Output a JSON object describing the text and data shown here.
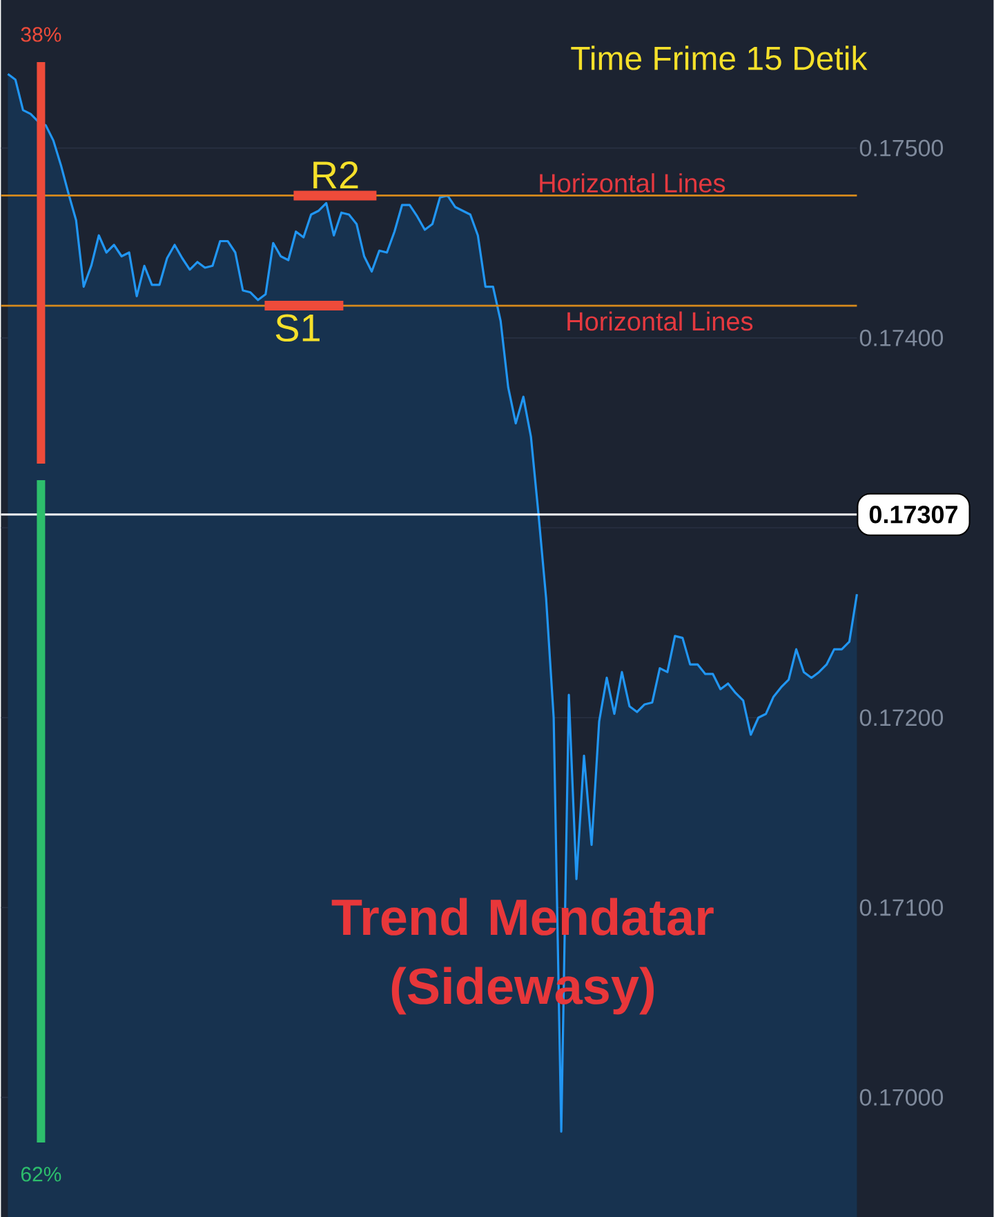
{
  "chart_data": {
    "type": "area",
    "title": "Time Frime 15 Detik",
    "categories": [
      null,
      null,
      null,
      null,
      null,
      null,
      null,
      null,
      null,
      null,
      null,
      null,
      null,
      null,
      null,
      null,
      null,
      null,
      null,
      null,
      null,
      null,
      null,
      null,
      null,
      null,
      null,
      null,
      null,
      null,
      null,
      null,
      null,
      null,
      null,
      null,
      null,
      null,
      null,
      null,
      null,
      null,
      null,
      null,
      null,
      null,
      null,
      null,
      null,
      null,
      null,
      null,
      null,
      null,
      null,
      null,
      null,
      null,
      null,
      null,
      null,
      null,
      null,
      null,
      null,
      null,
      null,
      null,
      null,
      null,
      null,
      null,
      null,
      null,
      null,
      null,
      null,
      null,
      null,
      null,
      null,
      null,
      null,
      null,
      null,
      null,
      null,
      null,
      null,
      null,
      null,
      null,
      null,
      null,
      null,
      null,
      null,
      null,
      null,
      null,
      null,
      null,
      null,
      null,
      null,
      null,
      null,
      null,
      null,
      null,
      null,
      null,
      null
    ],
    "series": [
      {
        "color": "#2196f3",
        "values": [
          0.17539,
          0.17536,
          0.1752,
          0.17518,
          0.17514,
          0.17512,
          0.17504,
          0.17491,
          0.17476,
          0.17462,
          0.17427,
          0.17438,
          0.17454,
          0.17445,
          0.17449,
          0.17443,
          0.17445,
          0.17422,
          0.17438,
          0.17428,
          0.17428,
          0.17442,
          0.17449,
          0.17442,
          0.17436,
          0.1744,
          0.17437,
          0.17438,
          0.17451,
          0.17451,
          0.17445,
          0.17425,
          0.17424,
          0.1742,
          0.17423,
          0.1745,
          0.17443,
          0.17441,
          0.17456,
          0.17453,
          0.17465,
          0.17467,
          0.17471,
          0.17454,
          0.17466,
          0.17465,
          0.1746,
          0.17443,
          0.17435,
          0.17446,
          0.17445,
          0.17456,
          0.1747,
          0.1747,
          0.17464,
          0.17457,
          0.1746,
          0.17474,
          0.17475,
          0.17469,
          0.17467,
          0.17465,
          0.17454,
          0.17427,
          0.17427,
          0.17409,
          0.17374,
          0.17355,
          0.17369,
          0.17348,
          0.17307,
          0.17263,
          0.172,
          0.16982,
          0.17212,
          0.17115,
          0.1718,
          0.17133,
          0.17198,
          0.17221,
          0.17202,
          0.17224,
          0.17206,
          0.17203,
          0.17207,
          0.17208,
          0.17226,
          0.17224,
          0.17243,
          0.17242,
          0.17228,
          0.17228,
          0.17223,
          0.17223,
          0.17215,
          0.17218,
          0.17213,
          0.17209,
          0.17191,
          0.172,
          0.17202,
          0.17211,
          0.17216,
          0.1722,
          0.17236,
          0.17224,
          0.17221,
          0.17224,
          0.17228,
          0.17236,
          0.17236,
          0.1724,
          0.17265
        ]
      }
    ],
    "ylim": [
      0.16937,
      0.17578
    ],
    "yticks": [
      {
        "value": 0.17,
        "label": "0.17000"
      },
      {
        "value": 0.171,
        "label": "0.17100"
      },
      {
        "value": 0.172,
        "label": "0.17200"
      },
      {
        "value": 0.173,
        "label": null
      },
      {
        "value": 0.174,
        "label": "0.17400"
      },
      {
        "value": 0.175,
        "label": "0.17500"
      }
    ],
    "grid": "y",
    "tick_labels": "y",
    "marker": "none",
    "ref_lines": [
      {
        "axis": "y",
        "value": 0.17475,
        "label": "Horizontal Lines",
        "color": "#d68a1c"
      },
      {
        "axis": "y",
        "value": 0.17417,
        "label": "Horizontal Lines",
        "color": "#d68a1c"
      },
      {
        "axis": "y",
        "value": 0.17307,
        "label": "0.17307",
        "color": "#ffffff"
      }
    ],
    "annotations": [
      {
        "text": "R2",
        "y": 0.17475
      },
      {
        "text": "S1",
        "y": 0.17417
      },
      "38%",
      "62%",
      "Trend Mendatar (Sidewasy)"
    ]
  }
}
